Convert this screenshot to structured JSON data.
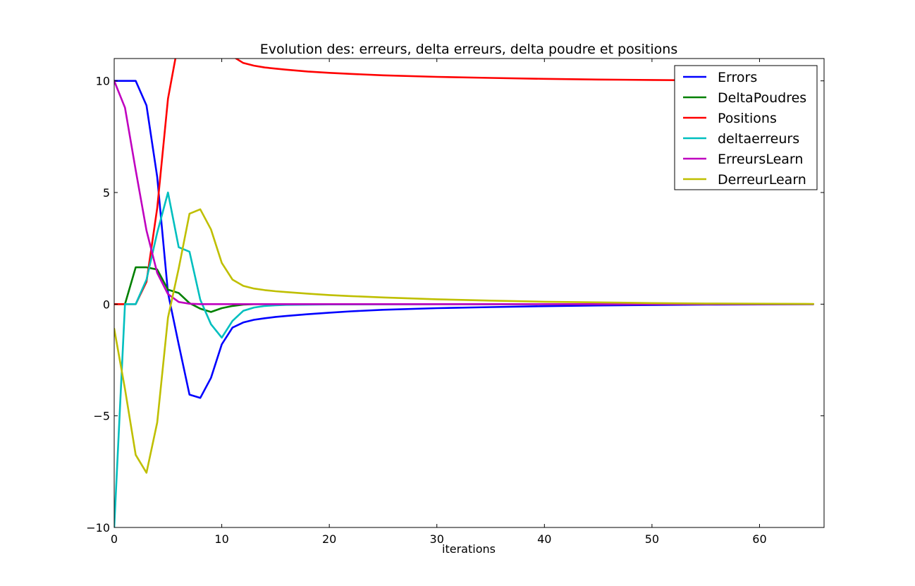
{
  "chart_data": {
    "type": "line",
    "title": "Evolution des: erreurs, delta erreurs, delta poudre et positions",
    "xlabel": "iterations",
    "ylabel": "",
    "xlim": [
      0,
      66
    ],
    "ylim": [
      -10,
      11
    ],
    "xticks": [
      0,
      10,
      20,
      30,
      40,
      50,
      60
    ],
    "yticks": [
      -10,
      -5,
      0,
      5,
      10
    ],
    "xtick_labels": [
      "0",
      "10",
      "20",
      "30",
      "40",
      "50",
      "60"
    ],
    "ytick_labels": [
      "−10",
      "−5",
      "0",
      "5",
      "10"
    ],
    "grid": false,
    "legend_position": "top-right",
    "series": [
      {
        "name": "Errors",
        "color": "#0000ff",
        "x": [
          0,
          1,
          2,
          3,
          4,
          5,
          6,
          7,
          8,
          9,
          10,
          11,
          12,
          13,
          14,
          15,
          16,
          18,
          20,
          22,
          25,
          30,
          35,
          40,
          45,
          50,
          55,
          60,
          65
        ],
        "y": [
          10,
          10,
          10,
          8.9,
          5.7,
          0.5,
          -1.8,
          -4.05,
          -4.2,
          -3.3,
          -1.8,
          -1.05,
          -0.82,
          -0.7,
          -0.63,
          -0.57,
          -0.53,
          -0.45,
          -0.38,
          -0.32,
          -0.25,
          -0.18,
          -0.13,
          -0.09,
          -0.06,
          -0.04,
          -0.02,
          -0.01,
          0
        ]
      },
      {
        "name": "DeltaPoudres",
        "color": "#008000",
        "x": [
          0,
          1,
          2,
          3,
          4,
          5,
          6,
          7,
          8,
          9,
          10,
          11,
          12,
          13,
          14,
          15,
          20,
          30,
          40,
          50,
          60,
          65
        ],
        "y": [
          0,
          0,
          1.65,
          1.65,
          1.55,
          0.65,
          0.5,
          0.05,
          -0.2,
          -0.35,
          -0.18,
          -0.08,
          -0.02,
          0,
          0,
          0,
          0,
          0,
          0,
          0,
          0,
          0
        ]
      },
      {
        "name": "Positions",
        "color": "#ff0000",
        "x": [
          0,
          1,
          2,
          3,
          4,
          5,
          6,
          7,
          8,
          9,
          10,
          11,
          12,
          13,
          14,
          15,
          16,
          18,
          20,
          22,
          25,
          30,
          35,
          40,
          45,
          50,
          55,
          60,
          65
        ],
        "y": [
          0,
          0,
          0,
          1,
          4.3,
          9.2,
          11.8,
          13.5,
          14.0,
          13.5,
          12.5,
          11.1,
          10.8,
          10.68,
          10.6,
          10.55,
          10.5,
          10.42,
          10.36,
          10.31,
          10.25,
          10.18,
          10.13,
          10.09,
          10.06,
          10.04,
          10.02,
          10.01,
          10
        ]
      },
      {
        "name": "deltaerreurs",
        "color": "#00bfbf",
        "x": [
          0,
          1,
          2,
          3,
          4,
          5,
          6,
          7,
          8,
          9,
          10,
          11,
          12,
          13,
          14,
          15,
          16,
          20,
          30,
          40,
          50,
          60,
          65
        ],
        "y": [
          -10,
          0,
          0,
          1.1,
          3.2,
          5.0,
          2.55,
          2.35,
          0.2,
          -0.9,
          -1.5,
          -0.75,
          -0.3,
          -0.15,
          -0.08,
          -0.05,
          -0.03,
          -0.01,
          0,
          0,
          0,
          0,
          0
        ]
      },
      {
        "name": "ErreursLearn",
        "color": "#bf00bf",
        "x": [
          0,
          1,
          2,
          3,
          4,
          5,
          6,
          7,
          8,
          9,
          10,
          15,
          20,
          30,
          40,
          50,
          60,
          65
        ],
        "y": [
          10,
          8.8,
          6.0,
          3.3,
          1.4,
          0.45,
          0.1,
          0.02,
          0,
          0,
          0,
          0,
          0,
          0,
          0,
          0,
          0,
          0
        ]
      },
      {
        "name": "DerreurLearn",
        "color": "#bfbf00",
        "x": [
          0,
          1,
          2,
          3,
          4,
          5,
          6,
          7,
          8,
          9,
          10,
          11,
          12,
          13,
          14,
          15,
          16,
          18,
          20,
          22,
          25,
          30,
          35,
          40,
          45,
          50,
          55,
          60,
          65
        ],
        "y": [
          -1.1,
          -3.8,
          -6.75,
          -7.55,
          -5.3,
          -0.6,
          1.6,
          4.05,
          4.25,
          3.35,
          1.85,
          1.1,
          0.82,
          0.7,
          0.63,
          0.58,
          0.54,
          0.47,
          0.41,
          0.36,
          0.3,
          0.22,
          0.16,
          0.11,
          0.08,
          0.05,
          0.03,
          0.02,
          0.01
        ]
      }
    ]
  }
}
